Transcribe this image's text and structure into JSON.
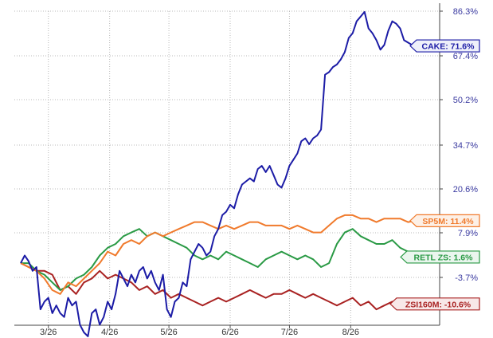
{
  "chart_data": {
    "type": "line",
    "title": "",
    "xlabel": "",
    "ylabel": "",
    "grid": true,
    "y_ticks": [
      "86.3%",
      "67.4%",
      "50.2%",
      "34.7%",
      "20.6%",
      "7.9%",
      "-3.7%"
    ],
    "y_tick_values": [
      86.3,
      67.4,
      50.2,
      34.7,
      20.6,
      7.9,
      -3.7
    ],
    "x_ticks": [
      "3/26",
      "4/26",
      "5/26",
      "6/26",
      "7/26",
      "8/26"
    ],
    "x_tick_days": [
      14,
      45,
      75,
      106,
      136,
      167
    ],
    "x_range": [
      0,
      212
    ],
    "series": [
      {
        "name": "CAKE",
        "label": "CAKE: 71.6%",
        "color": "#1c1ca6",
        "tag_fill": "#eef0fa",
        "points": [
          [
            0,
            0
          ],
          [
            2,
            2
          ],
          [
            4,
            0.5
          ],
          [
            6,
            -2
          ],
          [
            8,
            -1
          ],
          [
            10,
            -12
          ],
          [
            12,
            -10
          ],
          [
            14,
            -9
          ],
          [
            16,
            -13
          ],
          [
            18,
            -11
          ],
          [
            20,
            -13
          ],
          [
            22,
            -14
          ],
          [
            24,
            -9
          ],
          [
            26,
            -11
          ],
          [
            28,
            -10
          ],
          [
            30,
            -16
          ],
          [
            32,
            -18
          ],
          [
            34,
            -19
          ],
          [
            36,
            -13
          ],
          [
            38,
            -12
          ],
          [
            40,
            -16
          ],
          [
            42,
            -14
          ],
          [
            44,
            -10
          ],
          [
            46,
            -12
          ],
          [
            48,
            -8
          ],
          [
            50,
            -2
          ],
          [
            52,
            -4
          ],
          [
            54,
            -6
          ],
          [
            56,
            -3
          ],
          [
            58,
            -5
          ],
          [
            60,
            -2
          ],
          [
            62,
            -1
          ],
          [
            64,
            -4
          ],
          [
            66,
            -2
          ],
          [
            68,
            -5
          ],
          [
            70,
            -7
          ],
          [
            72,
            -3
          ],
          [
            74,
            -12
          ],
          [
            76,
            -14
          ],
          [
            78,
            -10
          ],
          [
            80,
            -9
          ],
          [
            82,
            -5
          ],
          [
            84,
            -6
          ],
          [
            86,
            1
          ],
          [
            88,
            3
          ],
          [
            90,
            5
          ],
          [
            92,
            4
          ],
          [
            94,
            2
          ],
          [
            96,
            3
          ],
          [
            98,
            7
          ],
          [
            100,
            9
          ],
          [
            102,
            13
          ],
          [
            104,
            14
          ],
          [
            106,
            16
          ],
          [
            108,
            15
          ],
          [
            110,
            19
          ],
          [
            112,
            22
          ],
          [
            114,
            23
          ],
          [
            116,
            24
          ],
          [
            118,
            23
          ],
          [
            120,
            27
          ],
          [
            122,
            28
          ],
          [
            124,
            26
          ],
          [
            126,
            28
          ],
          [
            128,
            25
          ],
          [
            130,
            22
          ],
          [
            132,
            21
          ],
          [
            134,
            24
          ],
          [
            136,
            28
          ],
          [
            138,
            30
          ],
          [
            140,
            32
          ],
          [
            142,
            36
          ],
          [
            144,
            37
          ],
          [
            146,
            35
          ],
          [
            148,
            37
          ],
          [
            150,
            38
          ],
          [
            152,
            40
          ],
          [
            154,
            60
          ],
          [
            156,
            61
          ],
          [
            158,
            63
          ],
          [
            160,
            64
          ],
          [
            162,
            66
          ],
          [
            164,
            69
          ],
          [
            166,
            75
          ],
          [
            168,
            77
          ],
          [
            170,
            82
          ],
          [
            172,
            84
          ],
          [
            174,
            86
          ],
          [
            176,
            79
          ],
          [
            178,
            77
          ],
          [
            180,
            74
          ],
          [
            182,
            70
          ],
          [
            184,
            72
          ],
          [
            186,
            78
          ],
          [
            188,
            82
          ],
          [
            190,
            81
          ],
          [
            192,
            79
          ],
          [
            194,
            74
          ],
          [
            196,
            73
          ],
          [
            198,
            72
          ],
          [
            200,
            71.6
          ]
        ]
      },
      {
        "name": "SP5M",
        "label": "SP5M: 11.4%",
        "color": "#f07a2c",
        "tag_fill": "#fdf0e6",
        "points": [
          [
            0,
            0
          ],
          [
            4,
            -1
          ],
          [
            8,
            -2
          ],
          [
            12,
            -4
          ],
          [
            16,
            -7
          ],
          [
            20,
            -8
          ],
          [
            24,
            -5
          ],
          [
            28,
            -6
          ],
          [
            32,
            -4
          ],
          [
            36,
            -2
          ],
          [
            40,
            0
          ],
          [
            44,
            3
          ],
          [
            48,
            2
          ],
          [
            52,
            5
          ],
          [
            56,
            6
          ],
          [
            60,
            5
          ],
          [
            64,
            7
          ],
          [
            68,
            8
          ],
          [
            72,
            7
          ],
          [
            76,
            8
          ],
          [
            80,
            9
          ],
          [
            84,
            10
          ],
          [
            88,
            11
          ],
          [
            92,
            11
          ],
          [
            96,
            10
          ],
          [
            100,
            9
          ],
          [
            104,
            10
          ],
          [
            108,
            9
          ],
          [
            112,
            10
          ],
          [
            116,
            11
          ],
          [
            120,
            11
          ],
          [
            124,
            10
          ],
          [
            128,
            10
          ],
          [
            132,
            10
          ],
          [
            136,
            9
          ],
          [
            140,
            10
          ],
          [
            144,
            9
          ],
          [
            148,
            8
          ],
          [
            152,
            8
          ],
          [
            156,
            10
          ],
          [
            160,
            12
          ],
          [
            164,
            13
          ],
          [
            168,
            13
          ],
          [
            172,
            12
          ],
          [
            176,
            12
          ],
          [
            180,
            11
          ],
          [
            184,
            12
          ],
          [
            188,
            12
          ],
          [
            192,
            12
          ],
          [
            196,
            11
          ],
          [
            200,
            11.4
          ]
        ]
      },
      {
        "name": "RETL ZS",
        "label": "RETL ZS: 1.6%",
        "color": "#2a9a45",
        "tag_fill": "#eaf6ee",
        "points": [
          [
            0,
            0
          ],
          [
            4,
            0
          ],
          [
            8,
            -2
          ],
          [
            12,
            -3
          ],
          [
            16,
            -5
          ],
          [
            20,
            -7
          ],
          [
            24,
            -6
          ],
          [
            28,
            -4
          ],
          [
            32,
            -3
          ],
          [
            36,
            -1
          ],
          [
            40,
            2
          ],
          [
            44,
            4
          ],
          [
            48,
            5
          ],
          [
            52,
            7
          ],
          [
            56,
            8
          ],
          [
            60,
            9
          ],
          [
            64,
            7
          ],
          [
            68,
            8
          ],
          [
            72,
            7
          ],
          [
            76,
            6
          ],
          [
            80,
            5
          ],
          [
            84,
            4
          ],
          [
            88,
            2
          ],
          [
            92,
            1
          ],
          [
            96,
            2
          ],
          [
            100,
            1
          ],
          [
            104,
            3
          ],
          [
            108,
            2
          ],
          [
            112,
            1
          ],
          [
            116,
            0
          ],
          [
            120,
            -1
          ],
          [
            124,
            1
          ],
          [
            128,
            2
          ],
          [
            132,
            3
          ],
          [
            136,
            2
          ],
          [
            140,
            1
          ],
          [
            144,
            2
          ],
          [
            148,
            1
          ],
          [
            152,
            -1
          ],
          [
            156,
            0
          ],
          [
            160,
            5
          ],
          [
            164,
            8
          ],
          [
            168,
            9
          ],
          [
            172,
            7
          ],
          [
            176,
            6
          ],
          [
            180,
            5
          ],
          [
            184,
            5
          ],
          [
            188,
            6
          ],
          [
            192,
            4
          ],
          [
            196,
            3
          ],
          [
            200,
            1.6
          ]
        ]
      },
      {
        "name": "ZSI160M",
        "label": "ZSI160M: -10.6%",
        "color": "#a92222",
        "tag_fill": "#f8e8e8",
        "points": [
          [
            0,
            0
          ],
          [
            4,
            -1
          ],
          [
            8,
            -2
          ],
          [
            12,
            -2
          ],
          [
            16,
            -3
          ],
          [
            20,
            -7
          ],
          [
            24,
            -6
          ],
          [
            28,
            -8
          ],
          [
            32,
            -5
          ],
          [
            36,
            -4
          ],
          [
            40,
            -2
          ],
          [
            44,
            -4
          ],
          [
            48,
            -3
          ],
          [
            52,
            -4
          ],
          [
            56,
            -5
          ],
          [
            60,
            -7
          ],
          [
            64,
            -6
          ],
          [
            68,
            -8
          ],
          [
            72,
            -7
          ],
          [
            76,
            -9
          ],
          [
            80,
            -8
          ],
          [
            84,
            -9
          ],
          [
            88,
            -10
          ],
          [
            92,
            -11
          ],
          [
            96,
            -10
          ],
          [
            100,
            -9
          ],
          [
            104,
            -10
          ],
          [
            108,
            -9
          ],
          [
            112,
            -8
          ],
          [
            116,
            -7
          ],
          [
            120,
            -8
          ],
          [
            124,
            -9
          ],
          [
            128,
            -8
          ],
          [
            132,
            -8
          ],
          [
            136,
            -7
          ],
          [
            140,
            -8
          ],
          [
            144,
            -9
          ],
          [
            148,
            -8
          ],
          [
            152,
            -9
          ],
          [
            156,
            -10
          ],
          [
            160,
            -11
          ],
          [
            164,
            -10
          ],
          [
            168,
            -9
          ],
          [
            172,
            -11
          ],
          [
            176,
            -10
          ],
          [
            180,
            -12
          ],
          [
            184,
            -11
          ],
          [
            188,
            -10
          ],
          [
            192,
            -11
          ],
          [
            196,
            -11
          ],
          [
            200,
            -10.6
          ]
        ]
      }
    ]
  }
}
